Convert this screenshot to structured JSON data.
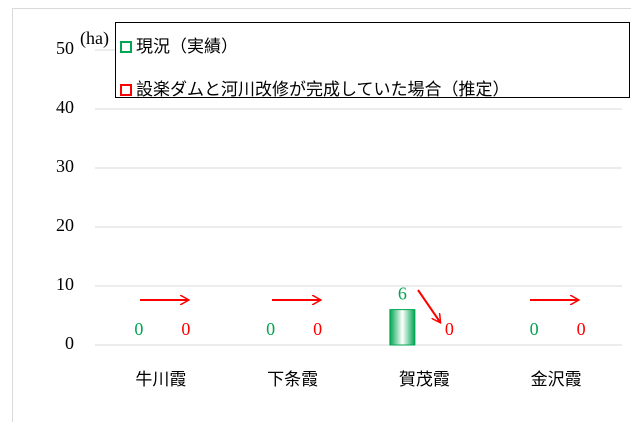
{
  "chart_data": {
    "type": "bar",
    "y_label": "(ha)",
    "categories": [
      "牛川霞",
      "下条霞",
      "賀茂霞",
      "金沢霞"
    ],
    "series": [
      {
        "name": "現況（実績）",
        "color": "#00a650",
        "values": [
          0,
          0,
          6,
          0
        ]
      },
      {
        "name": "設楽ダムと河川改修が完成していた場合（推定）",
        "color": "#ff0000",
        "values": [
          0,
          0,
          0,
          0
        ]
      }
    ],
    "ylim": [
      0,
      50
    ],
    "yticks": [
      0,
      10,
      20,
      30,
      40,
      50
    ],
    "grid": true,
    "legend": "top"
  }
}
